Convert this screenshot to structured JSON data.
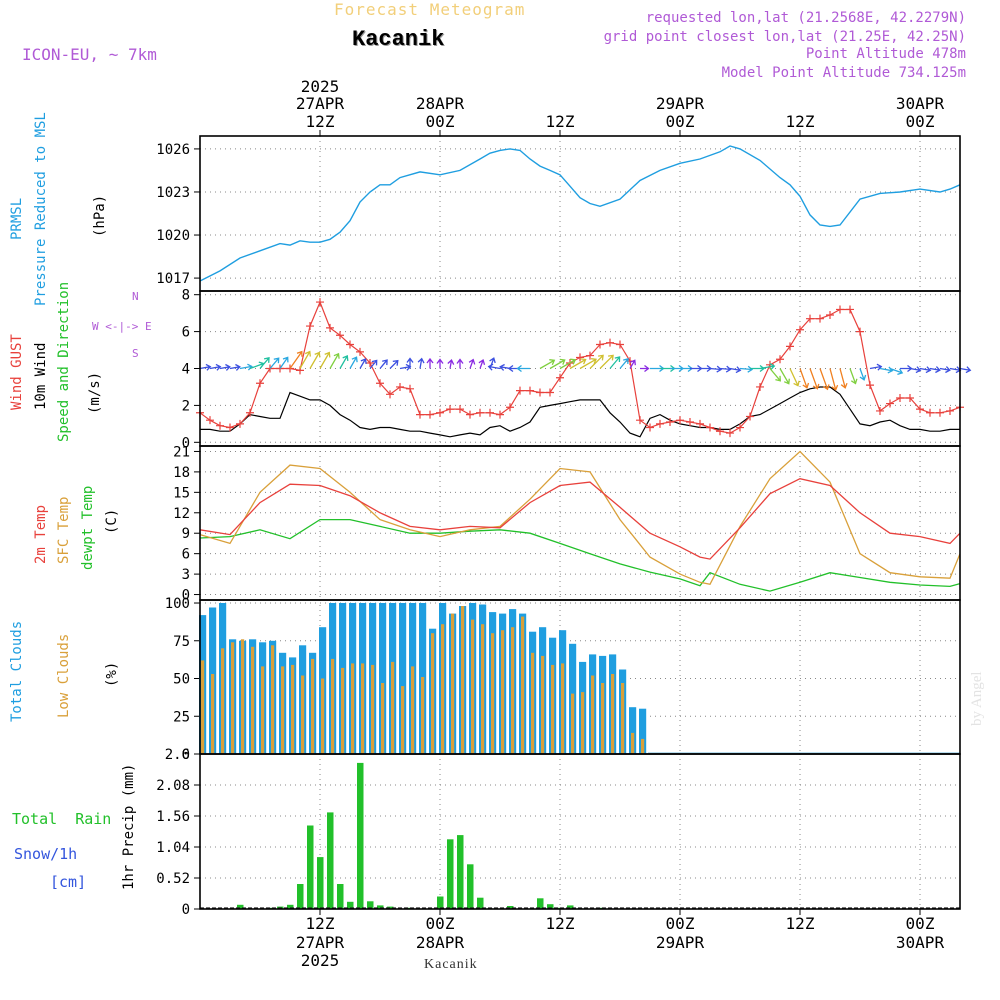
{
  "header": {
    "title": "Forecast Meteogram",
    "station": "Kacanik",
    "model": "ICON-EU, ~ 7km",
    "requested": "requested lon,lat (21.2568E, 42.2279N)",
    "gridpoint": "grid point closest lon,lat (21.25E, 42.25N)",
    "point_alt": "Point Altitude 478m",
    "model_alt": "Model Point Altitude 734.125m"
  },
  "footer_station": "Kacanik",
  "watermark": "by Angel",
  "time_axis": {
    "year": "2025",
    "top_labels": [
      {
        "h": 12,
        "l1": "27APR",
        "l2": "12Z",
        "year": true
      },
      {
        "h": 24,
        "l1": "28APR",
        "l2": "00Z"
      },
      {
        "h": 36,
        "l1": "",
        "l2": "12Z"
      },
      {
        "h": 48,
        "l1": "29APR",
        "l2": "00Z"
      },
      {
        "h": 60,
        "l1": "",
        "l2": "12Z"
      },
      {
        "h": 72,
        "l1": "30APR",
        "l2": "00Z"
      }
    ],
    "bottom_labels": [
      {
        "h": 12,
        "l1": "12Z",
        "l2": "27APR",
        "year": true
      },
      {
        "h": 24,
        "l1": "00Z",
        "l2": "28APR"
      },
      {
        "h": 36,
        "l1": "12Z",
        "l2": ""
      },
      {
        "h": 48,
        "l1": "00Z",
        "l2": "29APR"
      },
      {
        "h": 60,
        "l1": "12Z",
        "l2": ""
      },
      {
        "h": 72,
        "l1": "00Z",
        "l2": "30APR"
      }
    ]
  },
  "colors": {
    "pressure": "#1f9ee0",
    "gust": "#e8413c",
    "wind": "#000000",
    "temp": "#e8413c",
    "sfc": "#d9a03a",
    "dew": "#22c02a",
    "total_cloud": "#1f9ee0",
    "low_cloud": "#d9a03a",
    "rain": "#22c02a",
    "snow": "#3355dd",
    "purple": "#b05ad6"
  },
  "chart_data": [
    {
      "type": "line",
      "name": "pressure",
      "labels": [
        "PRMSL",
        "Pressure Reduced to MSL",
        "(hPa)"
      ],
      "ylim": [
        1016.1,
        1026.9
      ],
      "yticks": [
        1017,
        1020,
        1023,
        1026
      ],
      "x": [
        0,
        2,
        4,
        6,
        8,
        9,
        10,
        11,
        12,
        13,
        14,
        15,
        16,
        17,
        18,
        19,
        20,
        22,
        24,
        26,
        28,
        29,
        30,
        31,
        32,
        33,
        34,
        35,
        36,
        37,
        38,
        39,
        40,
        42,
        44,
        46,
        48,
        50,
        52,
        53,
        54,
        56,
        58,
        59,
        60,
        61,
        62,
        63,
        64,
        66,
        68,
        70,
        72,
        74,
        75,
        76
      ],
      "y": [
        1016.8,
        1017.5,
        1018.4,
        1018.9,
        1019.4,
        1019.3,
        1019.6,
        1019.5,
        1019.5,
        1019.7,
        1020.2,
        1021.0,
        1022.3,
        1023.0,
        1023.5,
        1023.5,
        1024.0,
        1024.4,
        1024.2,
        1024.5,
        1025.3,
        1025.7,
        1025.9,
        1026.0,
        1025.9,
        1025.3,
        1024.8,
        1024.5,
        1024.2,
        1023.4,
        1022.6,
        1022.2,
        1022.0,
        1022.5,
        1023.8,
        1024.5,
        1025.0,
        1025.3,
        1025.8,
        1026.2,
        1026.0,
        1025.2,
        1024.0,
        1023.5,
        1022.7,
        1021.4,
        1020.7,
        1020.6,
        1020.7,
        1022.5,
        1022.9,
        1023.0,
        1023.2,
        1023.0,
        1023.2,
        1023.5
      ]
    },
    {
      "type": "line",
      "name": "wind",
      "labels": [
        "Wind GUST",
        "10m Wind",
        "Speed and Direction",
        "(m/s)"
      ],
      "compass": [
        "N",
        "W <-|-> E",
        "S"
      ],
      "ylim": [
        -0.2,
        8.2
      ],
      "yticks": [
        0,
        2,
        4,
        6,
        8
      ],
      "x": [
        0,
        1,
        2,
        3,
        4,
        5,
        6,
        7,
        8,
        9,
        10,
        11,
        12,
        13,
        14,
        15,
        16,
        17,
        18,
        19,
        20,
        21,
        22,
        23,
        24,
        25,
        26,
        27,
        28,
        29,
        30,
        31,
        32,
        33,
        34,
        35,
        36,
        37,
        38,
        39,
        40,
        41,
        42,
        43,
        44,
        45,
        46,
        47,
        48,
        49,
        50,
        51,
        52,
        53,
        54,
        55,
        56,
        57,
        58,
        59,
        60,
        61,
        62,
        63,
        64,
        65,
        66,
        67,
        68,
        69,
        70,
        71,
        72,
        73,
        74,
        75,
        76
      ],
      "gust": [
        1.6,
        1.2,
        0.9,
        0.8,
        1.0,
        1.6,
        3.2,
        4.0,
        4.0,
        4.0,
        3.9,
        6.3,
        7.6,
        6.2,
        5.8,
        5.3,
        4.9,
        4.3,
        3.2,
        2.6,
        3.0,
        2.9,
        1.5,
        1.5,
        1.6,
        1.8,
        1.8,
        1.5,
        1.6,
        1.6,
        1.5,
        1.9,
        2.8,
        2.8,
        2.7,
        2.7,
        3.5,
        4.3,
        4.6,
        4.7,
        5.3,
        5.4,
        5.3,
        4.4,
        1.2,
        0.8,
        1.0,
        1.1,
        1.2,
        1.1,
        1.0,
        0.8,
        0.6,
        0.5,
        0.8,
        1.4,
        3.0,
        4.2,
        4.5,
        5.2,
        6.1,
        6.7,
        6.7,
        6.9,
        7.2,
        7.2,
        6.0,
        3.1,
        1.7,
        2.1,
        2.4,
        2.4,
        1.8,
        1.6,
        1.6,
        1.7,
        1.9
      ],
      "speed": [
        0.7,
        0.7,
        0.6,
        0.6,
        1.0,
        1.5,
        1.4,
        1.3,
        1.3,
        2.7,
        2.5,
        2.3,
        2.3,
        2.0,
        1.5,
        1.2,
        0.8,
        0.7,
        0.8,
        0.8,
        0.7,
        0.6,
        0.6,
        0.5,
        0.4,
        0.3,
        0.4,
        0.5,
        0.4,
        0.8,
        0.9,
        0.6,
        0.8,
        1.1,
        1.9,
        2.0,
        2.1,
        2.2,
        2.3,
        2.3,
        2.3,
        1.6,
        1.1,
        0.5,
        0.3,
        1.3,
        1.5,
        1.2,
        1.0,
        0.9,
        0.8,
        0.8,
        0.7,
        0.7,
        1.0,
        1.4,
        1.5,
        1.8,
        2.1,
        2.4,
        2.7,
        2.9,
        3.0,
        3.0,
        2.6,
        1.8,
        1.0,
        0.9,
        1.1,
        1.2,
        0.9,
        0.7,
        0.7,
        0.6,
        0.6,
        0.7,
        0.7
      ],
      "dir_deg": [
        80,
        80,
        80,
        80,
        80,
        70,
        40,
        40,
        35,
        35,
        30,
        30,
        30,
        30,
        30,
        30,
        30,
        40,
        40,
        45,
        80,
        0,
        10,
        0,
        0,
        10,
        0,
        20,
        20,
        20,
        280,
        280,
        270,
        270,
        60,
        60,
        60,
        60,
        60,
        45,
        45,
        40,
        40,
        30,
        90,
        90,
        90,
        90,
        90,
        90,
        90,
        95,
        95,
        100,
        95,
        90,
        80,
        140,
        150,
        155,
        160,
        160,
        160,
        165,
        165,
        160,
        160,
        80,
        100,
        110,
        90,
        100,
        100,
        100,
        100,
        100,
        100
      ]
    },
    {
      "type": "line",
      "name": "temperature",
      "labels": [
        "2m Temp",
        "SFC Temp",
        "dewpt Temp",
        "(C)"
      ],
      "ylim": [
        -0.8,
        21.8
      ],
      "yticks": [
        0,
        3,
        6,
        9,
        12,
        15,
        18,
        21
      ],
      "x": [
        0,
        3,
        6,
        9,
        12,
        15,
        18,
        21,
        24,
        27,
        30,
        33,
        36,
        39,
        42,
        45,
        48,
        50,
        51,
        54,
        57,
        60,
        63,
        66,
        69,
        72,
        75,
        76
      ],
      "t2m": [
        9.5,
        8.8,
        13.5,
        16.2,
        16.0,
        14.5,
        12.0,
        10.0,
        9.5,
        10.0,
        9.8,
        13.5,
        16.0,
        16.5,
        12.8,
        9.0,
        7.0,
        5.5,
        5.2,
        9.8,
        14.8,
        17.0,
        16.0,
        12.0,
        9.0,
        8.5,
        7.5,
        9.0
      ],
      "sfc": [
        8.8,
        7.5,
        15.0,
        19.0,
        18.5,
        15.0,
        11.0,
        9.5,
        8.5,
        9.5,
        10.0,
        14.0,
        18.5,
        18.0,
        11.0,
        5.5,
        3.0,
        1.8,
        1.5,
        10.0,
        17.0,
        21.0,
        16.5,
        6.0,
        3.2,
        2.6,
        2.4,
        6.0
      ],
      "dew": [
        8.3,
        8.5,
        9.5,
        8.2,
        11.0,
        11.0,
        10.0,
        9.0,
        9.0,
        9.3,
        9.5,
        9.0,
        7.5,
        6.0,
        4.5,
        3.3,
        2.3,
        1.3,
        3.2,
        1.5,
        0.5,
        1.8,
        3.2,
        2.5,
        1.8,
        1.4,
        1.2,
        1.6
      ]
    },
    {
      "type": "bar",
      "name": "clouds",
      "labels": [
        "Total Clouds",
        "Low Clouds",
        "(%)"
      ],
      "ylim": [
        0,
        102
      ],
      "yticks": [
        0,
        25,
        50,
        75,
        100
      ],
      "x": [
        0,
        1,
        2,
        3,
        4,
        5,
        6,
        7,
        8,
        9,
        10,
        11,
        12,
        13,
        14,
        15,
        16,
        17,
        18,
        19,
        20,
        21,
        22,
        23,
        24,
        25,
        26,
        27,
        28,
        29,
        30,
        31,
        32,
        33,
        34,
        35,
        36,
        37,
        38,
        39,
        40,
        41,
        42,
        43,
        44
      ],
      "total": [
        92,
        97,
        100,
        76,
        75,
        76,
        74,
        75,
        67,
        64,
        72,
        67,
        84,
        100,
        100,
        100,
        100,
        100,
        100,
        100,
        100,
        100,
        100,
        83,
        100,
        93,
        98,
        100,
        99,
        94,
        93,
        96,
        93,
        81,
        84,
        77,
        82,
        73,
        61,
        66,
        65,
        66,
        56,
        31,
        30
      ],
      "low": [
        62,
        53,
        70,
        74,
        76,
        71,
        58,
        72,
        58,
        59,
        52,
        63,
        50,
        63,
        57,
        60,
        60,
        59,
        47,
        61,
        45,
        58,
        51,
        80,
        86,
        93,
        98,
        89,
        86,
        80,
        82,
        84,
        91,
        67,
        65,
        59,
        60,
        40,
        41,
        52,
        47,
        53,
        47,
        14,
        10
      ]
    },
    {
      "type": "bar",
      "name": "precipitation",
      "labels": [
        "Total  Rain",
        "Snow/1h",
        "[cm]",
        "1hr Precip (mm)"
      ],
      "ylim": [
        0,
        2.6
      ],
      "yticks": [
        0,
        0.52,
        1.04,
        1.56,
        2.08,
        2.6
      ],
      "ytick_labels": [
        "0",
        "0.52",
        "1.04",
        "1.56",
        "2.08",
        "2.6"
      ],
      "x": [
        4,
        7,
        8,
        9,
        10,
        11,
        12,
        13,
        14,
        15,
        16,
        17,
        18,
        19,
        21,
        24,
        25,
        26,
        27,
        28,
        29,
        31,
        34,
        35,
        36,
        37,
        38,
        40
      ],
      "rain": [
        0.07,
        0.02,
        0.04,
        0.07,
        0.42,
        1.4,
        0.87,
        1.62,
        0.42,
        0.12,
        2.45,
        0.13,
        0.06,
        0.04,
        0.02,
        0.21,
        1.17,
        1.24,
        0.75,
        0.19,
        0.01,
        0.05,
        0.18,
        0.08,
        0.02,
        0.06,
        0.01,
        0.02
      ]
    }
  ]
}
